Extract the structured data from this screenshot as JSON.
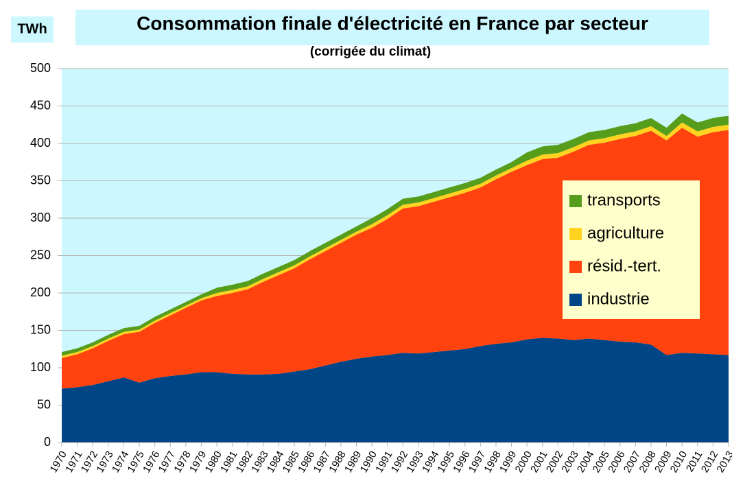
{
  "chart_data": {
    "type": "area",
    "stacked": true,
    "title": "Consommation finale d'électricité en France par secteur",
    "subtitle": "(corrigée du climat)",
    "y_label": "TWh",
    "categories": [
      "1970",
      "1971",
      "1972",
      "1973",
      "1974",
      "1975",
      "1976",
      "1977",
      "1978",
      "1979",
      "1980",
      "1981",
      "1982",
      "1983",
      "1984",
      "1985",
      "1986",
      "1987",
      "1988",
      "1989",
      "1990",
      "1991",
      "1992",
      "1993",
      "1994",
      "1995",
      "1996",
      "1997",
      "1998",
      "1999",
      "2000",
      "2001",
      "2002",
      "2003",
      "2004",
      "2005",
      "2006",
      "2007",
      "2008",
      "2009",
      "2010",
      "2011",
      "2012",
      "2013"
    ],
    "series": [
      {
        "name": "industrie",
        "color": "#004586",
        "values": [
          72,
          74,
          77,
          82,
          87,
          80,
          86,
          89,
          91,
          94,
          94,
          92,
          91,
          91,
          92,
          95,
          98,
          103,
          108,
          112,
          115,
          117,
          120,
          119,
          121,
          123,
          125,
          129,
          132,
          134,
          138,
          140,
          139,
          137,
          139,
          137,
          135,
          134,
          131,
          117,
          120,
          119,
          118,
          117
        ]
      },
      {
        "name": "résid.-tert.",
        "color": "#ff420e",
        "values": [
          41,
          44,
          49,
          54,
          58,
          68,
          74,
          81,
          89,
          96,
          102,
          108,
          114,
          124,
          132,
          138,
          147,
          153,
          159,
          166,
          172,
          182,
          193,
          197,
          201,
          205,
          209,
          212,
          220,
          228,
          233,
          239,
          242,
          252,
          259,
          264,
          271,
          276,
          286,
          287,
          301,
          290,
          297,
          301
        ]
      },
      {
        "name": "agriculture",
        "color": "#ffd320",
        "values": [
          3,
          3,
          3,
          3,
          3,
          3,
          3,
          3,
          3,
          3,
          4,
          4,
          4,
          4,
          4,
          4,
          4,
          4,
          4,
          4,
          5,
          5,
          5,
          5,
          5,
          5,
          5,
          5,
          5,
          5,
          6,
          6,
          6,
          6,
          6,
          6,
          6,
          6,
          6,
          6,
          7,
          7,
          7,
          7
        ]
      },
      {
        "name": "transports",
        "color": "#579d1c",
        "values": [
          5,
          5,
          5,
          5,
          5,
          5,
          5,
          5,
          5,
          5,
          7,
          7,
          7,
          7,
          7,
          7,
          7,
          7,
          7,
          7,
          8,
          8,
          8,
          8,
          8,
          8,
          8,
          8,
          8,
          8,
          11,
          11,
          11,
          11,
          11,
          11,
          11,
          11,
          11,
          11,
          12,
          12,
          12,
          12
        ]
      }
    ],
    "ylim": [
      0,
      500
    ],
    "yticks": [
      0,
      50,
      100,
      150,
      200,
      250,
      300,
      350,
      400,
      450,
      500
    ],
    "grid": true,
    "legend": "right",
    "plot_background": "#ccf7ff"
  }
}
